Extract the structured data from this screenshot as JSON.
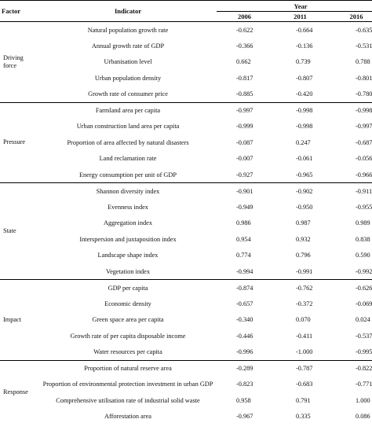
{
  "header": {
    "factor": "Factor",
    "indicator": "Indicator",
    "year": "Year",
    "years": [
      "2006",
      "2011",
      "2016"
    ]
  },
  "groups": [
    {
      "factor_lines": [
        "Driving",
        "force"
      ],
      "rows": [
        {
          "indicator": "Natural population growth rate",
          "values": [
            "-0.622",
            "-0.664",
            "-0.635"
          ]
        },
        {
          "indicator": "Annual growth rate of GDP",
          "values": [
            "-0.366",
            "-0.136",
            "-0.531"
          ]
        },
        {
          "indicator": "Urbanisation level",
          "values": [
            "0.662",
            "0.739",
            "0.788"
          ]
        },
        {
          "indicator": "Urban population density",
          "values": [
            "-0.817",
            "-0.807",
            "-0.801"
          ]
        },
        {
          "indicator": "Growth rate of consumer price",
          "values": [
            "-0.885",
            "-0.420",
            "-0.780"
          ]
        }
      ]
    },
    {
      "factor_lines": [
        "Pressure"
      ],
      "rows": [
        {
          "indicator": "Farmland area per capita",
          "values": [
            "-0.997",
            "-0.998",
            "-0.998"
          ]
        },
        {
          "indicator": "Urban construction land area per capita",
          "values": [
            "-0.999",
            "-0.998",
            "-0.997"
          ]
        },
        {
          "indicator": "Proportion of area affected by natural disasters",
          "values": [
            "-0.087",
            "0.247",
            "-0.687"
          ]
        },
        {
          "indicator": "Land reclamation rate",
          "values": [
            "-0.007",
            "-0.061",
            "-0.056"
          ]
        },
        {
          "indicator": "Energy consumption per unit of GDP",
          "values": [
            "-0.927",
            "-0.965",
            "-0.966"
          ]
        }
      ]
    },
    {
      "factor_lines": [
        "State"
      ],
      "rows": [
        {
          "indicator": "Shannon diversity index",
          "values": [
            "-0.901",
            "-0.902",
            "-0.911"
          ]
        },
        {
          "indicator": "Evenness index",
          "values": [
            "-0.949",
            "-0.950",
            "-0.955"
          ]
        },
        {
          "indicator": "Aggregation index",
          "values": [
            "0.986",
            "0.987",
            "0.989"
          ]
        },
        {
          "indicator": "Interspersion and juxtaposition index",
          "values": [
            "0.954",
            "0.932",
            "0.838"
          ]
        },
        {
          "indicator": "Landscape shape index",
          "values": [
            "0.774",
            "0.796",
            "0.590"
          ]
        },
        {
          "indicator": "Vegetation index",
          "values": [
            "-0.994",
            "-0.991",
            "-0.992"
          ]
        }
      ]
    },
    {
      "factor_lines": [
        "Impact"
      ],
      "rows": [
        {
          "indicator": "GDP per capita",
          "values": [
            "-0.874",
            "-0.762",
            "-0.626"
          ]
        },
        {
          "indicator": "Economic density",
          "values": [
            "-0.657",
            "-0.372",
            "-0.069"
          ]
        },
        {
          "indicator": "Green space area per capita",
          "values": [
            "-0.340",
            "0.070",
            "0.024"
          ]
        },
        {
          "indicator": "Growth rate of per capita disposable income",
          "values": [
            "-0.446",
            "-0.411",
            "-0.537"
          ]
        },
        {
          "indicator": "Water resources per capita",
          "values": [
            "-0.996",
            "-1.000",
            "-0.995"
          ]
        }
      ]
    },
    {
      "factor_lines": [
        "Response"
      ],
      "rows": [
        {
          "indicator": "Proportion of natural reserve area",
          "values": [
            "-0.289",
            "-0.787",
            "-0.822"
          ]
        },
        {
          "indicator": "Proportion of environmental protection investment in urban GDP",
          "values": [
            "-0.823",
            "-0.683",
            "-0.771"
          ]
        },
        {
          "indicator": "Comprehensive utilisation rate of industrial solid waste",
          "values": [
            "0.958",
            "0.791",
            "1.000"
          ]
        },
        {
          "indicator": "Afforestation area",
          "values": [
            "-0.967",
            "0.335",
            "0.086"
          ]
        }
      ]
    }
  ]
}
